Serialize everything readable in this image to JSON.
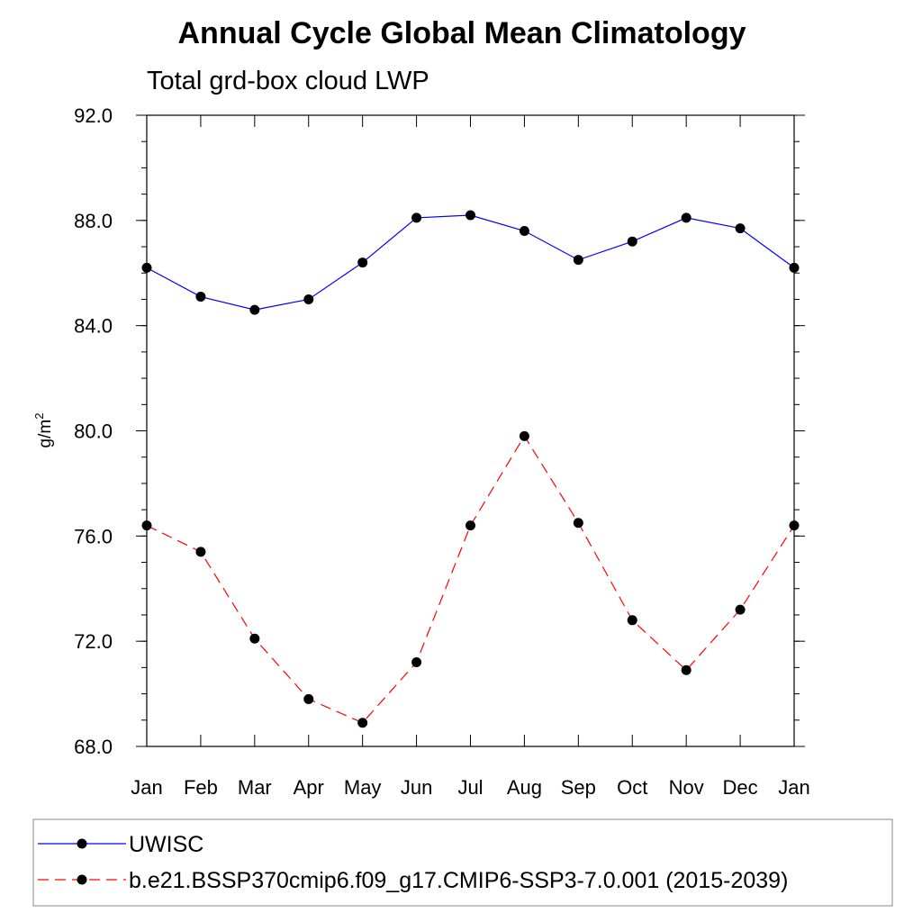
{
  "chart_data": {
    "type": "line",
    "title": "Annual Cycle Global Mean Climatology",
    "subtitle": "Total grd-box cloud LWP",
    "ylabel_base": "g/m",
    "ylabel_sup": "2",
    "xlabel": "",
    "categories": [
      "Jan",
      "Feb",
      "Mar",
      "Apr",
      "May",
      "Jun",
      "Jul",
      "Aug",
      "Sep",
      "Oct",
      "Nov",
      "Dec",
      "Jan"
    ],
    "ylim": [
      68.0,
      92.0
    ],
    "y_ticks": [
      "68.0",
      "72.0",
      "76.0",
      "80.0",
      "84.0",
      "88.0",
      "92.0"
    ],
    "grid": false,
    "legend_position": "bottom",
    "series": [
      {
        "name": "UWISC",
        "color": "#0000ff",
        "dash": "solid",
        "marker": "filled-circle",
        "values": [
          86.2,
          85.1,
          84.6,
          85.0,
          86.4,
          88.1,
          88.2,
          87.6,
          86.5,
          87.2,
          88.1,
          87.7,
          86.2
        ]
      },
      {
        "name": "b.e21.BSSP370cmip6.f09_g17.CMIP6-SSP3-7.0.001 (2015-2039)",
        "color": "#ff0000",
        "dash": "dashed",
        "marker": "filled-circle",
        "values": [
          76.4,
          75.4,
          72.1,
          69.8,
          68.9,
          71.2,
          76.4,
          79.8,
          76.5,
          72.8,
          70.9,
          73.2,
          76.4
        ]
      }
    ]
  }
}
